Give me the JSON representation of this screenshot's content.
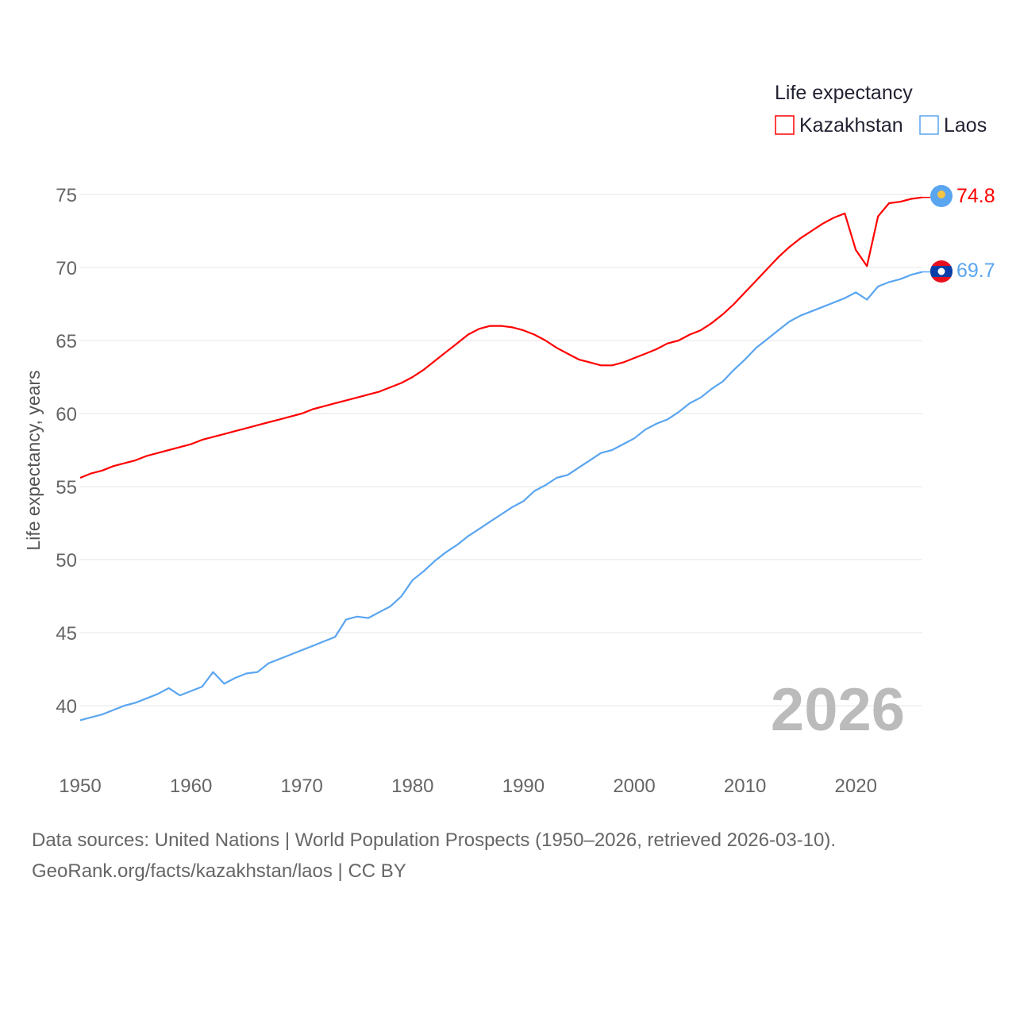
{
  "chart_data": {
    "type": "line",
    "title": "Life expectancy",
    "xlabel": "",
    "ylabel": "Life expectancy, years",
    "xlim": [
      1950,
      2026
    ],
    "ylim": [
      37.5,
      76
    ],
    "yticks": [
      40,
      45,
      50,
      55,
      60,
      65,
      70,
      75
    ],
    "xticks": [
      1950,
      1960,
      1970,
      1980,
      1990,
      2000,
      2010,
      2020
    ],
    "grid": true,
    "legend_placement": "top-right",
    "year_label": "2026",
    "x": [
      1950,
      1951,
      1952,
      1953,
      1954,
      1955,
      1956,
      1957,
      1958,
      1959,
      1960,
      1961,
      1962,
      1963,
      1964,
      1965,
      1966,
      1967,
      1968,
      1969,
      1970,
      1971,
      1972,
      1973,
      1974,
      1975,
      1976,
      1977,
      1978,
      1979,
      1980,
      1981,
      1982,
      1983,
      1984,
      1985,
      1986,
      1987,
      1988,
      1989,
      1990,
      1991,
      1992,
      1993,
      1994,
      1995,
      1996,
      1997,
      1998,
      1999,
      2000,
      2001,
      2002,
      2003,
      2004,
      2005,
      2006,
      2007,
      2008,
      2009,
      2010,
      2011,
      2012,
      2013,
      2014,
      2015,
      2016,
      2017,
      2018,
      2019,
      2020,
      2021,
      2022,
      2023,
      2024,
      2025,
      2026
    ],
    "series": [
      {
        "name": "Kazakhstan",
        "color": "#ff0000",
        "end_label": "74.8",
        "values": [
          55.6,
          55.9,
          56.1,
          56.4,
          56.6,
          56.8,
          57.1,
          57.3,
          57.5,
          57.7,
          57.9,
          58.2,
          58.4,
          58.6,
          58.8,
          59.0,
          59.2,
          59.4,
          59.6,
          59.8,
          60.0,
          60.3,
          60.5,
          60.7,
          60.9,
          61.1,
          61.3,
          61.5,
          61.8,
          62.1,
          62.5,
          63.0,
          63.6,
          64.2,
          64.8,
          65.4,
          65.8,
          66.0,
          66.0,
          65.9,
          65.7,
          65.4,
          65.0,
          64.5,
          64.1,
          63.7,
          63.5,
          63.3,
          63.3,
          63.5,
          63.8,
          64.1,
          64.4,
          64.8,
          65.0,
          65.4,
          65.7,
          66.2,
          66.8,
          67.5,
          68.3,
          69.1,
          69.9,
          70.7,
          71.4,
          72.0,
          72.5,
          73.0,
          73.4,
          73.7,
          71.2,
          70.1,
          73.5,
          74.4,
          74.5,
          74.7,
          74.8
        ]
      },
      {
        "name": "Laos",
        "color": "#5aa5f0",
        "end_label": "69.7",
        "values": [
          39.0,
          39.2,
          39.4,
          39.7,
          40.0,
          40.2,
          40.5,
          40.8,
          41.2,
          40.7,
          41.0,
          41.3,
          42.3,
          41.5,
          41.9,
          42.2,
          42.3,
          42.9,
          43.2,
          43.5,
          43.8,
          44.1,
          44.4,
          44.7,
          45.9,
          46.1,
          46.0,
          46.4,
          46.8,
          47.5,
          48.6,
          49.2,
          49.9,
          50.5,
          51.0,
          51.6,
          52.1,
          52.6,
          53.1,
          53.6,
          54.0,
          54.7,
          55.1,
          55.6,
          55.8,
          56.3,
          56.8,
          57.3,
          57.5,
          57.9,
          58.3,
          58.9,
          59.3,
          59.6,
          60.1,
          60.7,
          61.1,
          61.7,
          62.2,
          63.0,
          63.7,
          64.5,
          65.1,
          65.7,
          66.3,
          66.7,
          67.0,
          67.3,
          67.6,
          67.9,
          68.3,
          67.8,
          68.7,
          69.0,
          69.2,
          69.5,
          69.7
        ]
      }
    ]
  },
  "footer": {
    "sources": "Data sources: United Nations | World Population Prospects (1950–2026, retrieved 2026-03-10).",
    "credit": "GeoRank.org/facts/kazakhstan/laos | CC BY"
  }
}
